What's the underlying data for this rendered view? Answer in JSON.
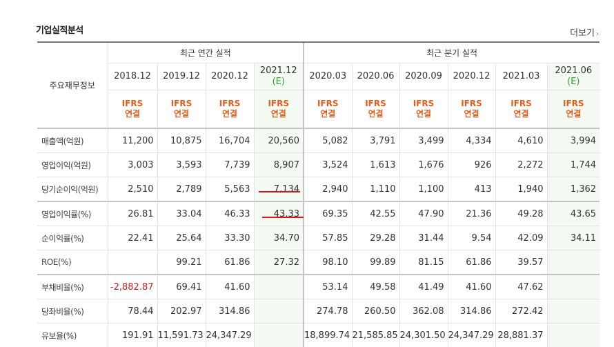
{
  "title": "기업실적분석",
  "more": {
    "label": "더보기",
    "arrow": "›"
  },
  "header": {
    "label": "주요재무정보",
    "annual_group": "최근 연간 실적",
    "quarter_group": "최근 분기 실적",
    "periods": [
      {
        "period": "2018.12",
        "est": ""
      },
      {
        "period": "2019.12",
        "est": ""
      },
      {
        "period": "2020.12",
        "est": ""
      },
      {
        "period": "2021.12",
        "est": "(E)"
      },
      {
        "period": "2020.03",
        "est": ""
      },
      {
        "period": "2020.06",
        "est": ""
      },
      {
        "period": "2020.09",
        "est": ""
      },
      {
        "period": "2020.12",
        "est": ""
      },
      {
        "period": "2021.03",
        "est": ""
      },
      {
        "period": "2021.06",
        "est": "(E)"
      }
    ],
    "ifrs_top": "IFRS",
    "ifrs_bottom": "연결"
  },
  "rows": [
    {
      "label": "매출액(억원)",
      "values": [
        "11,200",
        "10,875",
        "16,704",
        "20,560",
        "5,082",
        "3,791",
        "3,499",
        "4,334",
        "4,610",
        "3,994"
      ]
    },
    {
      "label": "영업이익(억원)",
      "values": [
        "3,003",
        "3,593",
        "7,739",
        "8,907",
        "3,524",
        "1,613",
        "1,676",
        "926",
        "2,272",
        "1,744"
      ]
    },
    {
      "label": "당기순이익(억원)",
      "values": [
        "2,510",
        "2,789",
        "5,563",
        "7,134",
        "2,940",
        "1,110",
        "1,100",
        "413",
        "1,940",
        "1,362"
      ]
    },
    {
      "label": "영업이익률(%)",
      "values": [
        "26.81",
        "33.04",
        "46.33",
        "43.33",
        "69.35",
        "42.55",
        "47.90",
        "21.36",
        "49.28",
        "43.65"
      ]
    },
    {
      "label": "순이익률(%)",
      "values": [
        "22.41",
        "25.64",
        "33.30",
        "34.70",
        "57.85",
        "29.28",
        "31.44",
        "9.54",
        "42.09",
        "34.11"
      ]
    },
    {
      "label": "ROE(%)",
      "values": [
        "",
        "99.21",
        "61.86",
        "27.32",
        "98.10",
        "99.89",
        "81.15",
        "61.86",
        "39.57",
        ""
      ]
    },
    {
      "label": "부채비율(%)",
      "values": [
        "-2,882.87",
        "69.41",
        "41.60",
        "",
        "53.14",
        "49.58",
        "41.49",
        "41.60",
        "47.62",
        ""
      ]
    },
    {
      "label": "당좌비율(%)",
      "values": [
        "78.44",
        "202.97",
        "314.86",
        "",
        "274.78",
        "260.50",
        "362.08",
        "314.86",
        "272.42",
        ""
      ]
    },
    {
      "label": "유보율(%)",
      "values": [
        "191.91",
        "11,591.73",
        "24,347.29",
        "",
        "18,899.74",
        "21,585.85",
        "24,301.50",
        "24,347.29",
        "28,881.37",
        ""
      ]
    }
  ]
}
